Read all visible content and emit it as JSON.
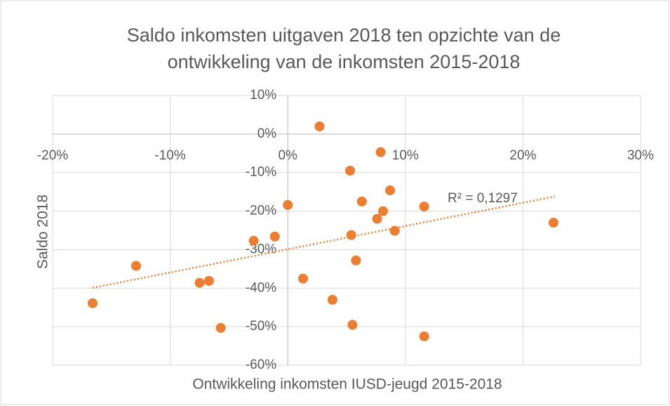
{
  "chart_data": {
    "type": "scatter",
    "title": [
      "Saldo inkomsten uitgaven 2018 ten opzichte van de",
      "ontwikkeling van de inkomsten 2015-2018"
    ],
    "x_label": "Ontwikkeling inkomsten IUSD-jeugd 2015-2018",
    "y_label": "Saldo 2018",
    "annotation": "R² = 0,1297",
    "color": "#ed7d31",
    "grid": true,
    "xlim": [
      -20,
      30
    ],
    "ylim": [
      -60,
      10
    ],
    "xticks": [
      {
        "value": -20,
        "label": "-20%"
      },
      {
        "value": -10,
        "label": "-10%"
      },
      {
        "value": 0,
        "label": "0%"
      },
      {
        "value": 10,
        "label": "10%"
      },
      {
        "value": 20,
        "label": "20%"
      },
      {
        "value": 30,
        "label": "30%"
      }
    ],
    "yticks": [
      {
        "value": 10,
        "label": "10%"
      },
      {
        "value": 0,
        "label": "0%"
      },
      {
        "value": -10,
        "label": "-10%"
      },
      {
        "value": -20,
        "label": "-20%"
      },
      {
        "value": -30,
        "label": "-30%"
      },
      {
        "value": -40,
        "label": "-40%"
      },
      {
        "value": -50,
        "label": "-50%"
      },
      {
        "value": -60,
        "label": "-60%"
      }
    ],
    "x": [
      2.7,
      7.9,
      5.3,
      8.7,
      6.3,
      0,
      8.1,
      11.6,
      7.6,
      22.6,
      9.1,
      5.4,
      -1.1,
      -2.9,
      5.8,
      -12.9,
      1.3,
      -6.7,
      -7.5,
      3.8,
      -16.6,
      5.5,
      -5.7,
      11.6
    ],
    "values": [
      2.0,
      -4.7,
      -9.5,
      -14.6,
      -17.5,
      -18.4,
      -20.0,
      -18.8,
      -22.0,
      -23.0,
      -25.1,
      -26.2,
      -26.6,
      -27.7,
      -32.8,
      -34.2,
      -37.5,
      -38.1,
      -38.6,
      -43.0,
      -43.9,
      -49.5,
      -50.3,
      -52.5
    ],
    "trendline": {
      "x": [
        -16.6,
        22.7
      ],
      "values": [
        -39.9,
        -16.2
      ]
    }
  }
}
